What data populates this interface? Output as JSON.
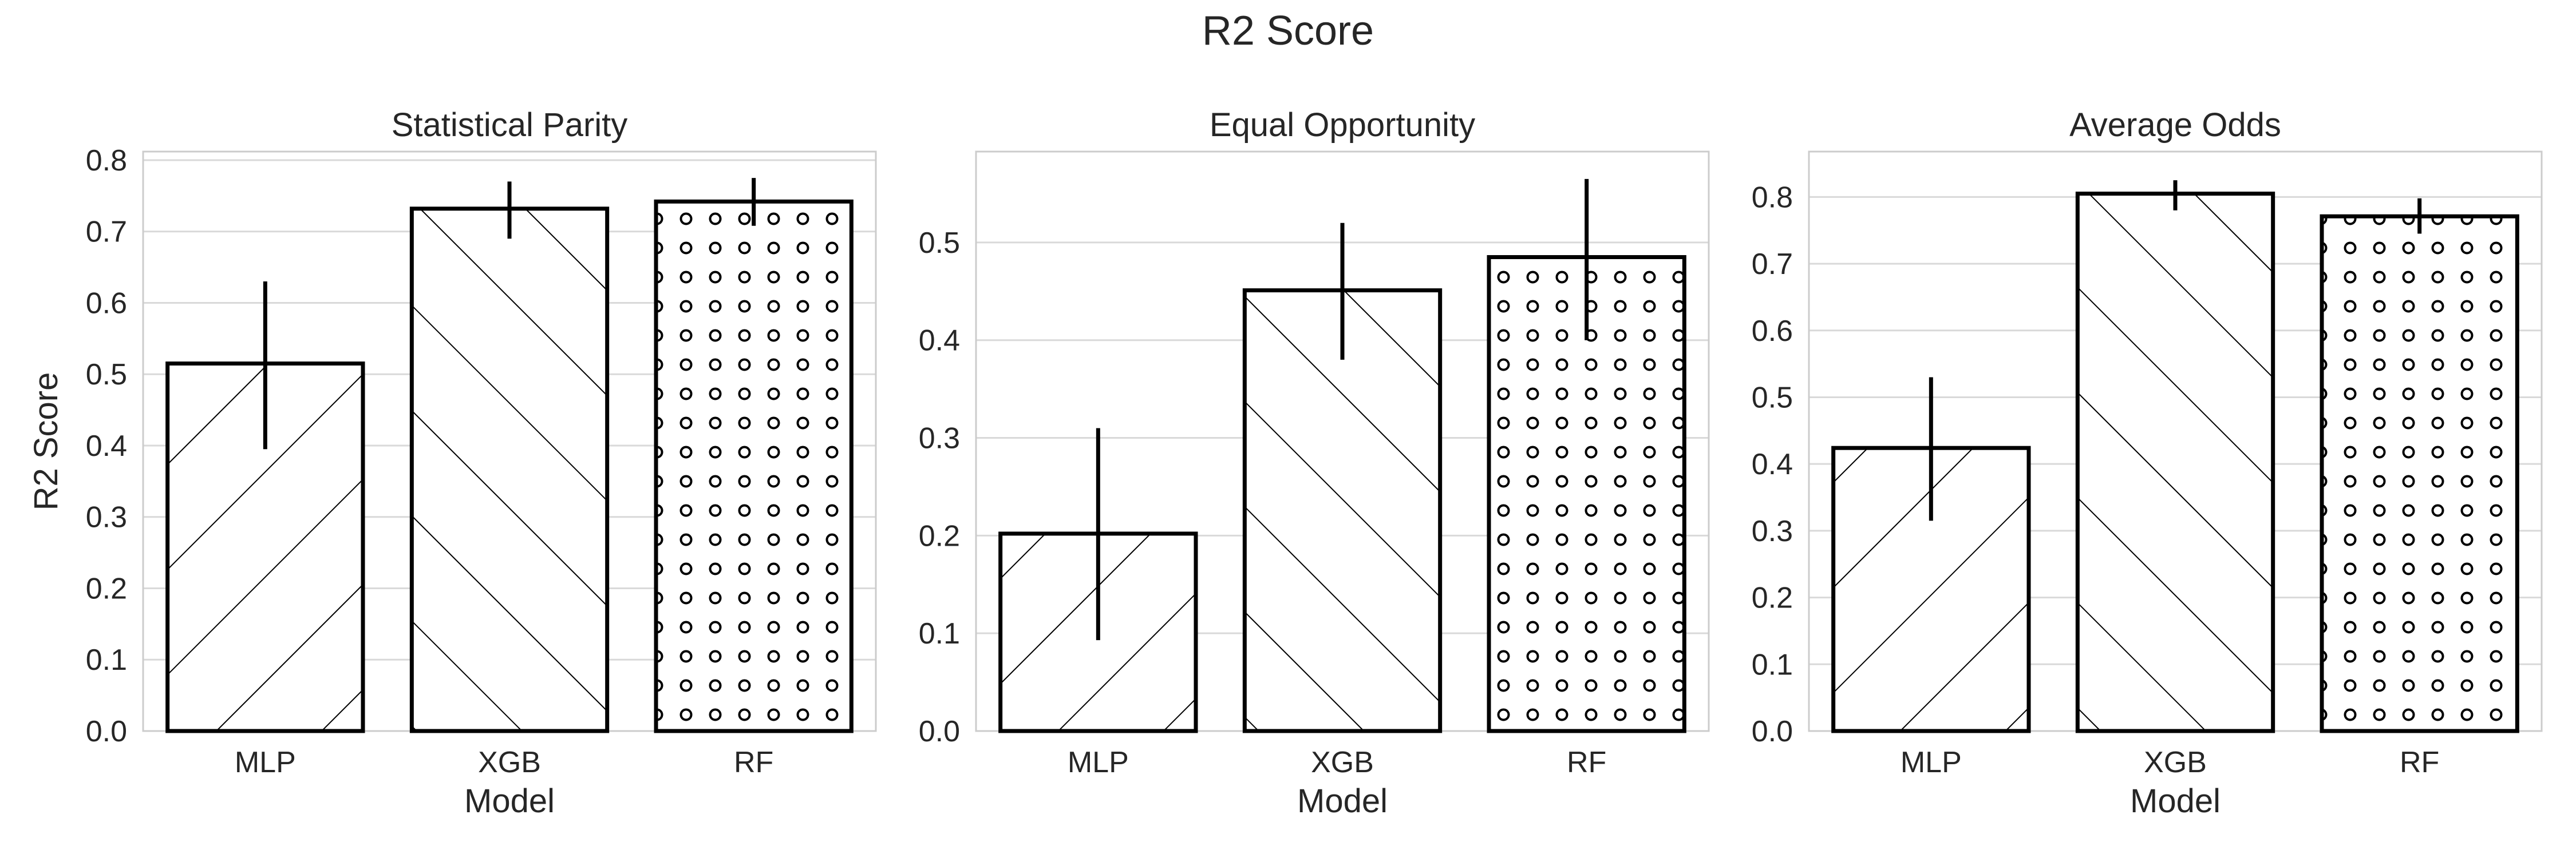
{
  "figure": {
    "title": "R2 Score"
  },
  "chart_data": [
    {
      "type": "bar",
      "title": "Statistical Parity",
      "categories": [
        "MLP",
        "XGB",
        "RF"
      ],
      "values": [
        0.515,
        0.732,
        0.742
      ],
      "error_low": [
        0.395,
        0.69,
        0.708
      ],
      "error_high": [
        0.63,
        0.77,
        0.775
      ],
      "patterns": [
        "forward-hatch",
        "back-hatch",
        "circles"
      ],
      "xlabel": "Model",
      "ylabel": "R2 Score",
      "ylim": [
        0,
        0.812
      ],
      "yticks": [
        "0.0",
        "0.1",
        "0.2",
        "0.3",
        "0.4",
        "0.5",
        "0.6",
        "0.7",
        "0.8"
      ],
      "ytick_values": [
        0,
        0.1,
        0.2,
        0.3,
        0.4,
        0.5,
        0.6,
        0.7,
        0.8
      ],
      "grid": true
    },
    {
      "type": "bar",
      "title": "Equal Opportunity",
      "categories": [
        "MLP",
        "XGB",
        "RF"
      ],
      "values": [
        0.202,
        0.451,
        0.485
      ],
      "error_low": [
        0.093,
        0.38,
        0.4
      ],
      "error_high": [
        0.31,
        0.52,
        0.565
      ],
      "patterns": [
        "forward-hatch",
        "back-hatch",
        "circles"
      ],
      "xlabel": "Model",
      "ylabel": "",
      "ylim": [
        0,
        0.593
      ],
      "yticks": [
        "0.0",
        "0.1",
        "0.2",
        "0.3",
        "0.4",
        "0.5"
      ],
      "ytick_values": [
        0,
        0.1,
        0.2,
        0.3,
        0.4,
        0.5
      ],
      "grid": true
    },
    {
      "type": "bar",
      "title": "Average Odds",
      "categories": [
        "MLP",
        "XGB",
        "RF"
      ],
      "values": [
        0.424,
        0.805,
        0.771
      ],
      "error_low": [
        0.315,
        0.78,
        0.745
      ],
      "error_high": [
        0.53,
        0.825,
        0.798
      ],
      "patterns": [
        "forward-hatch",
        "back-hatch",
        "circles"
      ],
      "xlabel": "Model",
      "ylabel": "",
      "ylim": [
        0,
        0.868
      ],
      "yticks": [
        "0.0",
        "0.1",
        "0.2",
        "0.3",
        "0.4",
        "0.5",
        "0.6",
        "0.7",
        "0.8"
      ],
      "ytick_values": [
        0,
        0.1,
        0.2,
        0.3,
        0.4,
        0.5,
        0.6,
        0.7,
        0.8
      ],
      "grid": true
    }
  ]
}
